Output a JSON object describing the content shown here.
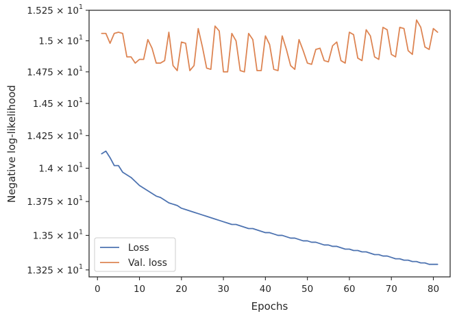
{
  "chart_data": {
    "type": "line",
    "xlabel": "Epochs",
    "ylabel": "Negative log-likelihood",
    "xlim": [
      -2,
      84
    ],
    "ylim": [
      13.2,
      15.25
    ],
    "y_scale": "log",
    "grid": false,
    "legend_position": "lower-left",
    "x_ticks": [
      0,
      10,
      20,
      30,
      40,
      50,
      60,
      70,
      80
    ],
    "x_tick_labels": [
      "0",
      "10",
      "20",
      "30",
      "40",
      "50",
      "60",
      "70",
      "80"
    ],
    "y_ticks": [
      13.25,
      13.5,
      13.75,
      14.0,
      14.25,
      14.5,
      14.75,
      15.0,
      15.25
    ],
    "y_tick_labels": [
      {
        "mantissa": "1.325",
        "exponent": "1"
      },
      {
        "mantissa": "1.35",
        "exponent": "1"
      },
      {
        "mantissa": "1.375",
        "exponent": "1"
      },
      {
        "mantissa": "1.4",
        "exponent": "1"
      },
      {
        "mantissa": "1.425",
        "exponent": "1"
      },
      {
        "mantissa": "1.45",
        "exponent": "1"
      },
      {
        "mantissa": "1.475",
        "exponent": "1"
      },
      {
        "mantissa": "1.5",
        "exponent": "1"
      },
      {
        "mantissa": "1.525",
        "exponent": "1"
      }
    ],
    "x": [
      1,
      2,
      3,
      4,
      5,
      6,
      7,
      8,
      9,
      10,
      11,
      12,
      13,
      14,
      15,
      16,
      17,
      18,
      19,
      20,
      21,
      22,
      23,
      24,
      25,
      26,
      27,
      28,
      29,
      30,
      31,
      32,
      33,
      34,
      35,
      36,
      37,
      38,
      39,
      40,
      41,
      42,
      43,
      44,
      45,
      46,
      47,
      48,
      49,
      50,
      51,
      52,
      53,
      54,
      55,
      56,
      57,
      58,
      59,
      60,
      61,
      62,
      63,
      64,
      65,
      66,
      67,
      68,
      69,
      70,
      71,
      72,
      73,
      74,
      75,
      76,
      77,
      78,
      79,
      80,
      81
    ],
    "series": [
      {
        "name": "Loss",
        "color": "#4c72b0",
        "values": [
          14.11,
          14.13,
          14.08,
          14.02,
          14.02,
          13.97,
          13.95,
          13.93,
          13.9,
          13.87,
          13.85,
          13.83,
          13.81,
          13.79,
          13.78,
          13.76,
          13.74,
          13.73,
          13.72,
          13.7,
          13.69,
          13.68,
          13.67,
          13.66,
          13.65,
          13.64,
          13.63,
          13.62,
          13.61,
          13.6,
          13.59,
          13.58,
          13.58,
          13.57,
          13.56,
          13.55,
          13.55,
          13.54,
          13.53,
          13.52,
          13.52,
          13.51,
          13.5,
          13.5,
          13.49,
          13.48,
          13.48,
          13.47,
          13.46,
          13.46,
          13.45,
          13.45,
          13.44,
          13.43,
          13.43,
          13.42,
          13.42,
          13.41,
          13.4,
          13.4,
          13.39,
          13.39,
          13.38,
          13.38,
          13.37,
          13.36,
          13.36,
          13.35,
          13.35,
          13.34,
          13.33,
          13.33,
          13.32,
          13.32,
          13.31,
          13.31,
          13.3,
          13.3,
          13.29,
          13.29,
          13.29
        ]
      },
      {
        "name": "Val. loss",
        "color": "#dd8452",
        "values": [
          15.06,
          15.06,
          14.98,
          15.06,
          15.07,
          15.06,
          14.87,
          14.87,
          14.82,
          14.85,
          14.85,
          15.01,
          14.94,
          14.82,
          14.82,
          14.84,
          15.07,
          14.8,
          14.76,
          14.99,
          14.98,
          14.76,
          14.8,
          15.1,
          14.95,
          14.78,
          14.77,
          15.12,
          15.08,
          14.75,
          14.75,
          15.06,
          15.0,
          14.76,
          14.75,
          15.06,
          15.01,
          14.76,
          14.76,
          15.04,
          14.97,
          14.77,
          14.76,
          15.04,
          14.93,
          14.8,
          14.77,
          15.01,
          14.92,
          14.82,
          14.81,
          14.93,
          14.94,
          14.84,
          14.83,
          14.96,
          14.99,
          14.84,
          14.82,
          15.07,
          15.05,
          14.86,
          14.84,
          15.09,
          15.04,
          14.87,
          14.85,
          15.11,
          15.09,
          14.89,
          14.87,
          15.11,
          15.1,
          14.92,
          14.89,
          15.17,
          15.11,
          14.95,
          14.93,
          15.1,
          15.07
        ]
      }
    ]
  }
}
